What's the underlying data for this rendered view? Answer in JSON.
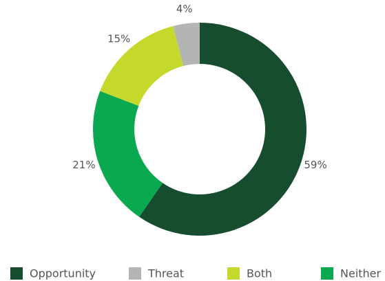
{
  "chart_data": {
    "type": "donut",
    "categories": [
      "Opportunity",
      "Threat",
      "Both",
      "Neither"
    ],
    "values": [
      59,
      4,
      15,
      21
    ],
    "value_labels": [
      "59%",
      "4%",
      "15%",
      "21%"
    ],
    "colors": [
      "#154d2e",
      "#b3b5b3",
      "#c5d92d",
      "#0aa84f"
    ],
    "legend": "bottom"
  }
}
